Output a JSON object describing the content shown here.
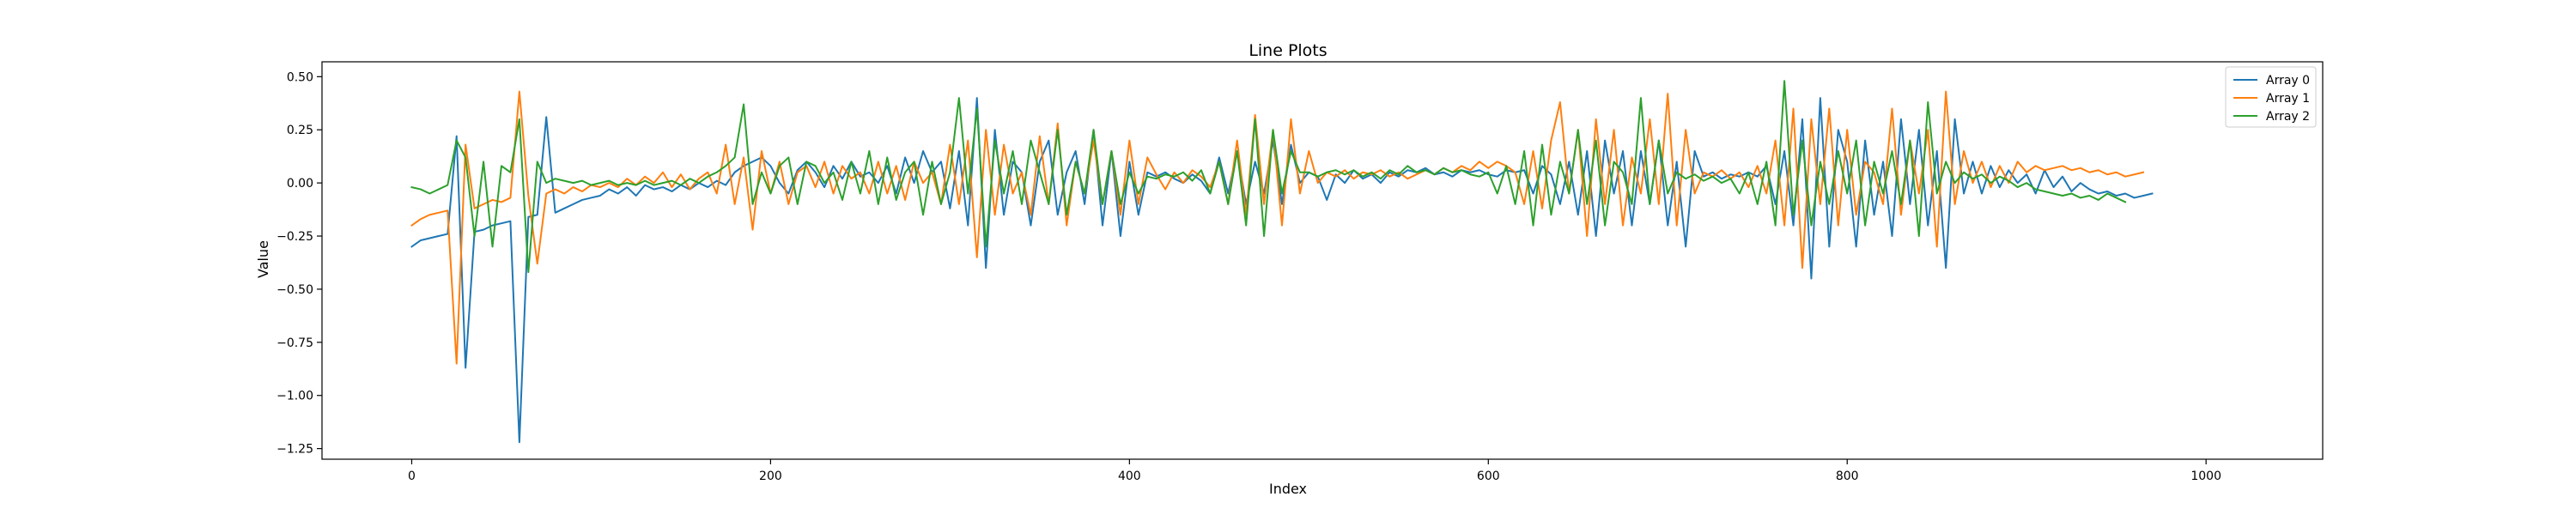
{
  "chart_data": {
    "type": "line",
    "title": "Line Plots",
    "xlabel": "Index",
    "ylabel": "Value",
    "xlim": [
      -50,
      1065
    ],
    "ylim": [
      -1.3,
      0.57
    ],
    "xticks": [
      0,
      200,
      400,
      600,
      800,
      1000
    ],
    "yticks": [
      -1.25,
      -1.0,
      -0.75,
      -0.5,
      -0.25,
      0.0,
      0.25,
      0.5
    ],
    "ytick_labels": [
      "−1.25",
      "−1.00",
      "−0.75",
      "−0.50",
      "−0.25",
      "0.00",
      "0.25",
      "0.50"
    ],
    "grid": false,
    "legend_position": "top-right",
    "x_start": 0,
    "x_step": 5,
    "series": [
      {
        "name": "Array 0",
        "color": "#1f77b4",
        "values": [
          -0.3,
          -0.27,
          -0.26,
          -0.25,
          -0.24,
          0.22,
          -0.87,
          -0.23,
          -0.22,
          -0.2,
          -0.19,
          -0.18,
          -1.22,
          -0.16,
          -0.15,
          0.31,
          -0.14,
          -0.12,
          -0.1,
          -0.08,
          -0.07,
          -0.06,
          -0.03,
          -0.05,
          -0.02,
          -0.06,
          -0.01,
          -0.03,
          -0.02,
          -0.04,
          -0.01,
          -0.03,
          0.0,
          -0.02,
          0.01,
          -0.01,
          0.05,
          0.08,
          0.1,
          0.12,
          0.08,
          0.0,
          -0.05,
          0.06,
          0.1,
          0.05,
          -0.02,
          0.08,
          0.02,
          0.1,
          0.03,
          0.05,
          0.0,
          0.08,
          -0.05,
          0.12,
          0.0,
          0.15,
          0.05,
          0.1,
          -0.12,
          0.15,
          -0.2,
          0.4,
          -0.4,
          0.25,
          -0.15,
          0.1,
          0.05,
          -0.2,
          0.1,
          0.2,
          -0.15,
          0.05,
          0.15,
          -0.1,
          0.25,
          -0.2,
          0.15,
          -0.25,
          0.1,
          -0.15,
          0.05,
          0.03,
          0.05,
          0.02,
          0.0,
          0.04,
          0.01,
          -0.05,
          0.12,
          -0.05,
          0.15,
          -0.1,
          0.1,
          -0.05,
          0.2,
          -0.1,
          0.18,
          0.0,
          0.05,
          0.03,
          -0.08,
          0.04,
          0.0,
          0.06,
          0.02,
          0.04,
          0.0,
          0.05,
          0.03,
          0.06,
          0.05,
          0.07,
          0.04,
          0.05,
          0.03,
          0.06,
          0.05,
          0.06,
          0.04,
          0.03,
          0.06,
          0.05,
          0.06,
          -0.05,
          0.08,
          0.04,
          -0.1,
          0.1,
          -0.15,
          0.15,
          -0.25,
          0.2,
          -0.05,
          0.15,
          -0.2,
          0.15,
          -0.1,
          0.2,
          -0.2,
          0.1,
          -0.3,
          0.15,
          0.03,
          0.05,
          0.02,
          0.04,
          0.03,
          0.05,
          0.03,
          0.08,
          -0.1,
          0.15,
          -0.2,
          0.3,
          -0.45,
          0.4,
          -0.3,
          0.25,
          0.1,
          -0.3,
          0.2,
          -0.15,
          0.1,
          -0.25,
          0.3,
          -0.1,
          0.25,
          -0.2,
          0.15,
          -0.4,
          0.3,
          -0.05,
          0.1,
          -0.05,
          0.08,
          -0.02,
          0.06,
          0.0,
          0.04,
          -0.05,
          0.06,
          -0.02,
          0.03,
          -0.04,
          0.0,
          -0.03,
          -0.05,
          -0.04,
          -0.06,
          -0.05,
          -0.07,
          -0.06,
          -0.05
        ]
      },
      {
        "name": "Array 1",
        "color": "#ff7f0e",
        "values": [
          -0.2,
          -0.17,
          -0.15,
          -0.14,
          -0.13,
          -0.85,
          0.18,
          -0.12,
          -0.1,
          -0.08,
          -0.09,
          -0.07,
          0.43,
          -0.06,
          -0.38,
          -0.05,
          -0.03,
          -0.05,
          -0.02,
          -0.04,
          -0.01,
          -0.02,
          0.0,
          -0.02,
          0.02,
          -0.01,
          0.03,
          0.0,
          0.05,
          -0.02,
          0.04,
          -0.03,
          0.02,
          0.05,
          -0.05,
          0.18,
          -0.1,
          0.12,
          -0.22,
          0.15,
          -0.05,
          0.1,
          -0.1,
          0.05,
          0.08,
          -0.02,
          0.1,
          -0.05,
          0.08,
          0.02,
          0.05,
          -0.05,
          0.1,
          -0.05,
          0.08,
          -0.08,
          0.1,
          0.0,
          0.05,
          -0.1,
          0.18,
          -0.1,
          0.2,
          -0.35,
          0.25,
          -0.15,
          0.18,
          -0.05,
          0.05,
          -0.15,
          0.22,
          -0.1,
          0.28,
          -0.2,
          0.1,
          -0.05,
          0.2,
          -0.1,
          0.15,
          -0.15,
          0.2,
          -0.1,
          0.12,
          0.04,
          -0.03,
          0.05,
          0.0,
          0.06,
          0.03,
          -0.02,
          0.1,
          -0.1,
          0.2,
          -0.15,
          0.32,
          -0.1,
          0.25,
          -0.2,
          0.3,
          -0.05,
          0.15,
          0.0,
          0.05,
          0.03,
          0.06,
          0.02,
          0.05,
          0.04,
          0.06,
          0.03,
          0.05,
          0.02,
          0.04,
          0.06,
          0.04,
          0.07,
          0.05,
          0.08,
          0.06,
          0.1,
          0.07,
          0.1,
          0.08,
          0.05,
          -0.1,
          0.15,
          -0.12,
          0.2,
          0.38,
          -0.05,
          0.25,
          -0.25,
          0.3,
          -0.1,
          0.25,
          -0.2,
          0.12,
          -0.05,
          0.3,
          -0.1,
          0.42,
          -0.2,
          0.25,
          -0.05,
          0.05,
          0.03,
          0.06,
          0.02,
          0.05,
          -0.02,
          0.08,
          -0.05,
          0.2,
          -0.2,
          0.35,
          -0.4,
          0.3,
          -0.1,
          0.35,
          -0.2,
          0.25,
          -0.15,
          0.1,
          0.05,
          -0.1,
          0.35,
          -0.15,
          0.2,
          -0.05,
          0.25,
          -0.3,
          0.43,
          -0.1,
          0.15,
          0.0,
          0.1,
          -0.02,
          0.08,
          0.0,
          0.1,
          0.05,
          0.08,
          0.06,
          0.07,
          0.08,
          0.06,
          0.07,
          0.05,
          0.06,
          0.04,
          0.05,
          0.03,
          0.04,
          0.05
        ]
      },
      {
        "name": "Array 2",
        "color": "#2ca02c",
        "values": [
          -0.02,
          -0.03,
          -0.05,
          -0.03,
          -0.01,
          0.2,
          0.12,
          -0.25,
          0.1,
          -0.3,
          0.08,
          0.05,
          0.3,
          -0.42,
          0.1,
          0.0,
          0.02,
          0.01,
          0.0,
          0.01,
          -0.01,
          0.0,
          0.01,
          -0.01,
          0.0,
          -0.01,
          0.01,
          -0.01,
          0.0,
          0.01,
          -0.01,
          0.02,
          0.0,
          0.03,
          0.05,
          0.08,
          0.12,
          0.37,
          -0.1,
          0.05,
          -0.05,
          0.08,
          0.12,
          -0.1,
          0.1,
          0.08,
          0.0,
          0.05,
          -0.08,
          0.1,
          -0.05,
          0.15,
          -0.1,
          0.12,
          -0.08,
          0.05,
          0.1,
          -0.15,
          0.1,
          -0.1,
          0.05,
          0.4,
          -0.05,
          0.35,
          -0.3,
          0.2,
          -0.05,
          0.15,
          -0.1,
          0.2,
          0.05,
          -0.1,
          0.25,
          -0.15,
          0.1,
          -0.05,
          0.25,
          -0.1,
          0.15,
          -0.1,
          0.05,
          -0.05,
          0.03,
          0.02,
          0.04,
          0.03,
          0.05,
          0.01,
          0.06,
          -0.05,
          0.1,
          -0.1,
          0.15,
          -0.2,
          0.3,
          -0.25,
          0.25,
          -0.05,
          0.15,
          0.05,
          0.05,
          0.03,
          0.05,
          0.06,
          0.04,
          0.06,
          0.03,
          0.05,
          0.02,
          0.06,
          0.04,
          0.08,
          0.05,
          0.06,
          0.04,
          0.07,
          0.05,
          0.06,
          0.04,
          0.03,
          0.05,
          -0.05,
          0.08,
          -0.1,
          0.15,
          -0.2,
          0.18,
          -0.15,
          0.1,
          -0.05,
          0.25,
          -0.1,
          0.2,
          -0.2,
          0.1,
          0.05,
          -0.1,
          0.4,
          -0.1,
          0.2,
          -0.05,
          0.05,
          0.02,
          0.04,
          0.01,
          0.03,
          0.0,
          0.02,
          -0.05,
          0.05,
          -0.1,
          0.1,
          -0.2,
          0.48,
          -0.15,
          0.2,
          -0.2,
          0.1,
          -0.1,
          0.15,
          -0.05,
          0.2,
          -0.2,
          0.1,
          -0.05,
          0.15,
          -0.1,
          0.2,
          -0.25,
          0.38,
          -0.05,
          0.1,
          0.0,
          0.05,
          0.02,
          0.04,
          0.0,
          0.03,
          0.01,
          -0.02,
          0.0,
          -0.03,
          -0.04,
          -0.05,
          -0.06,
          -0.05,
          -0.07,
          -0.06,
          -0.08,
          -0.05,
          -0.07,
          -0.09
        ]
      }
    ]
  }
}
